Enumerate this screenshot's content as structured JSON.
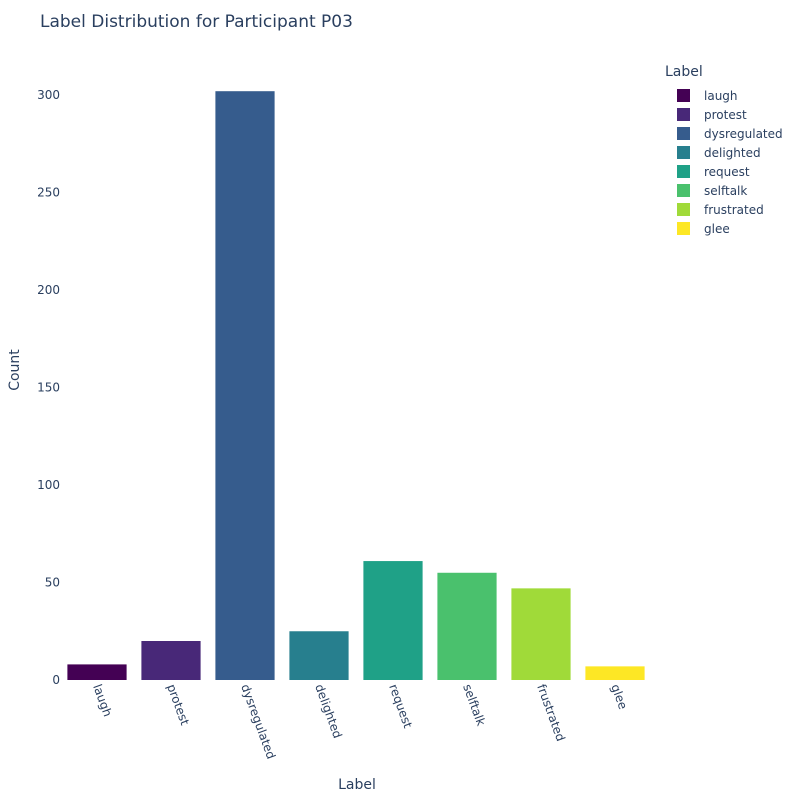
{
  "chart_data": {
    "type": "bar",
    "title": "Label Distribution for Participant P03",
    "xlabel": "Label",
    "ylabel": "Count",
    "categories": [
      "laugh",
      "protest",
      "dysregulated",
      "delighted",
      "request",
      "selftalk",
      "frustrated",
      "glee"
    ],
    "values": [
      8,
      20,
      302,
      25,
      61,
      55,
      47,
      7
    ],
    "colors": [
      "#440154",
      "#482878",
      "#365c8d",
      "#277f8e",
      "#1fa187",
      "#4ac16d",
      "#a0da39",
      "#fde725"
    ],
    "ylim": [
      0,
      318
    ],
    "yticks": [
      0,
      50,
      100,
      150,
      200,
      250,
      300
    ],
    "grid": false,
    "legend": {
      "title": "Label",
      "position": "top-right"
    }
  }
}
